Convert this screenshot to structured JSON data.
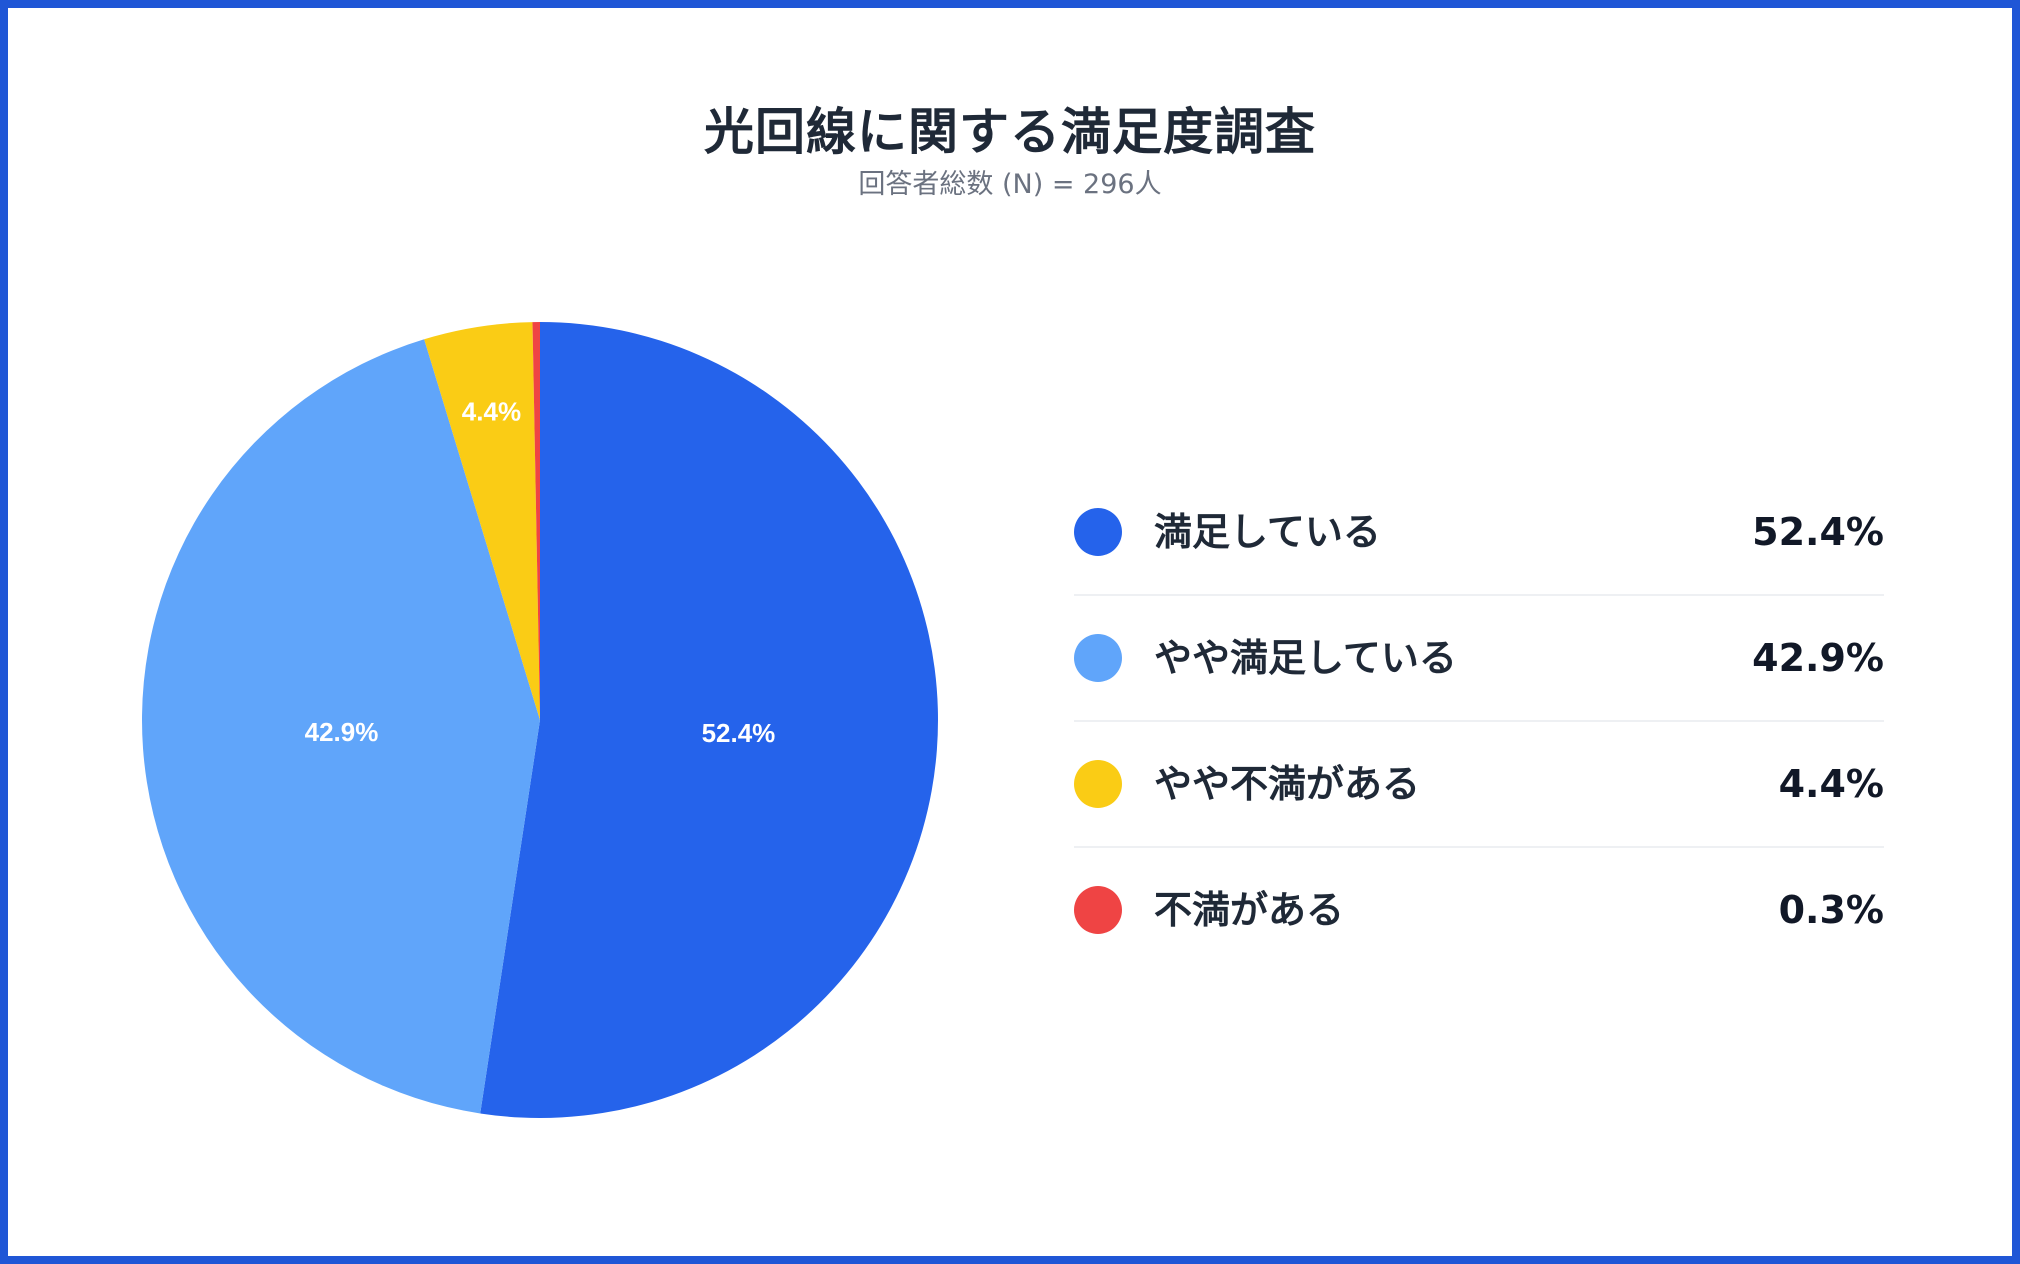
{
  "colors": {
    "frame": "#1f56d6",
    "slice_1": "#2563eb",
    "slice_2": "#60a5fa",
    "slice_3": "#facc15",
    "slice_4": "#ef4444"
  },
  "chart_data": {
    "type": "pie",
    "title": "光回線に関する満足度調査",
    "subtitle": "回答者総数 (N) = 296人",
    "categories": [
      "満足している",
      "やや満足している",
      "やや不満がある",
      "不満がある"
    ],
    "values": [
      52.4,
      42.9,
      4.4,
      0.3
    ],
    "value_labels": [
      "52.4%",
      "42.9%",
      "4.4%",
      "0.3%"
    ],
    "slice_labels": [
      "52.4%",
      "42.9%",
      "4.4%",
      ""
    ],
    "colors": [
      "#2563eb",
      "#60a5fa",
      "#facc15",
      "#ef4444"
    ],
    "start_angle": "top",
    "direction": "clockwise",
    "legend_position": "right"
  }
}
